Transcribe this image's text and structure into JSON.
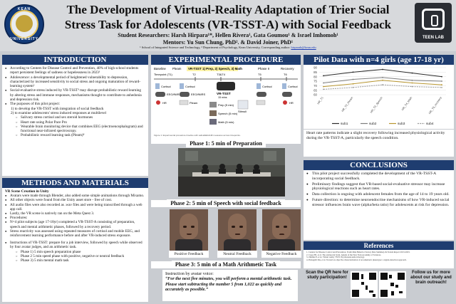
{
  "header": {
    "title_line1": "The Development of Virtual-Reality Adaptation of Trier Social",
    "title_line2": "Stress Task for Adolescents (VR-TSST-A) with Social Feedback",
    "researchers": "Student Researchers: Harsh Hirpara¹*, Hellen Rivera¹, Gata Goumou¹ & Israel Imhomoh¹",
    "mentors": "Mentors: Yu Sun Chung, PhD². & David Joiner, PhD¹",
    "affiliation": "¹ School of Integrated Science and Technology, ² Department of Psychology, Kean University, Corresponding author:",
    "email": "hirparah@kean.edu",
    "left_logo_top": "KEAN",
    "left_logo_bottom": "UNIVERSITY",
    "right_logo_label": "TEEN LAB"
  },
  "introduction": {
    "heading": "INTRODUCTION",
    "bullets": [
      "According to Centers for Disease Control and Prevention, 40% of high school students report persistent feelings of sadness or hopelessness in 2023¹",
      "Adolescence: a developmental period of heightened vulnerability to depression, characterized by increased sensitivity to social stress and ongoing maturation of reward-learning system²",
      "Social-evaluative stress induced by VR-TSST³ may disrupt probabilistic reward learning by altering stress and immune responses, mechanisms thought to contribute to anhedonia and depression risk.",
      "The purposes of this pilot project:"
    ],
    "numbered": [
      "1)  to develop the VR-TSST with integration of social feedback",
      "2)  to examine adolescents' stress induced responses at multilevel"
    ],
    "sub_bullets": [
      "Salivary stress cortisol and sex steroid hormones",
      "Heart rate using Polar Pace Pro",
      "Wearable brain monitoring device that combines EEG (electroencephalogram) and functional near-infrared spectroscopy.",
      "Probabilistic reward learning task (Pleam)⁴"
    ]
  },
  "methods": {
    "heading": "METHODS AND MATERIALS",
    "subheading": "VR Scene Creation in Unity",
    "bullets": [
      "Avatars were made through Blender, also added some simple animations through Mixamo.",
      "All other objects were found from the Unity asset store - free of cost.",
      "All audio files were also recorded as .wav files and were being transcribed through a web app call.",
      "Lastly, the VR scene is natively ran on the Meta Quest 3.",
      "Procedures:",
      "N=4 pilot subjects (age 17-18yr) completed a VR-TSST-A consisting of preparation, speech and mental arithmetic phases, followed by a recovery period.",
      "Stress reactivity was assessed using repeated measures of cortisol and mobile EEG, and reinforcement learning performance before and after VR-induced stress exposure."
    ],
    "bullet_last": "Instructions of VR-TSST: prepare for a job interview, followed by speech while observed by four avatar judges, and an arithmetic task.",
    "phases": [
      "Phase 1) 5 min speech preparation phase",
      "Phase 2 5 min speed phase with positive, negative or neutral feedback",
      "Phase 3) 5 min mental math task"
    ]
  },
  "experimental": {
    "heading": "EXPERIMENTAL PROCEDURE",
    "phases_row": [
      "Baseline",
      "Pleam",
      "VR-TSST 1) Prep, 2) Speech, 3) Math",
      "Phase II",
      "Recovery"
    ],
    "timepoints": [
      "Timepoint (T1)",
      "T2",
      "T3&T4",
      "T5",
      "T6"
    ],
    "labels": {
      "cortisol": "Cortisol",
      "eeg": "EEG/fNIRS",
      "hr": "HR",
      "vr_tsst": "VR-TSST",
      "vr_sub": "15 mins",
      "prep": "Prep (5 min)",
      "speech": "Speech (5 min)",
      "math": "Math (5 min)",
      "pleam": "Pleam",
      "stimuli": "Stimuli"
    },
    "footnote": "Figure 1: Experimental procedure timeline with saliva/EEG/HR measures across timepoints."
  },
  "phase1": {
    "caption": "Phase 1: 5 min of Preparation"
  },
  "phase2": {
    "caption": "Phase 2: 5 min of Speech with social feedback",
    "feedback": [
      "Positive Feedback",
      "Neutral Feedback",
      "Negative Feedback"
    ]
  },
  "phase3": {
    "caption": "Phase 3: 5 min of a Math Arithmetic Task",
    "instruction": "Instruction by avatar voice:",
    "quote": "“For the next five minutes, you will perform a mental arithmetic task. Please start subtracting the number 5 from 1,022 as quickly and accurately as possible.”"
  },
  "pilot": {
    "heading": "Pilot Data with n=4 girls (age 17-18 yr)",
    "text": "Heart rate patterns indicate a slight recovery following increased physiological activity during the VR-TSST-A, particularly the speech condition."
  },
  "chart_data": {
    "type": "line",
    "categories": [
      "HR_T1",
      "HR_T2_Pleam",
      "HR_T3_Speech",
      "HR_T4_Math",
      "HR_T5_recovery"
    ],
    "series": [
      {
        "name": "sub1",
        "values": [
          81,
          85,
          88,
          84,
          80
        ]
      },
      {
        "name": "sub2",
        "values": [
          73,
          77,
          79,
          76,
          75
        ]
      },
      {
        "name": "sub3",
        "values": [
          69,
          72,
          76,
          73,
          71
        ]
      },
      {
        "name": "sub4",
        "values": [
          66,
          68,
          71,
          69,
          68
        ]
      }
    ],
    "ylim": [
      60,
      90
    ],
    "yticks": [
      60,
      65,
      70,
      75,
      80,
      85,
      90
    ],
    "legend": "bottom",
    "colors": [
      "#2a2a2a",
      "#7d7d7d",
      "#b8962f",
      "#9a9a9a"
    ]
  },
  "conclusions": {
    "heading": "CONCLUSIONS",
    "bullets": [
      "This pilot project successfully completed the development of the VR-TSST-A incorporating social feedback.",
      "Preliminary findings suggest that VR-based social-evaluative stressor may increase physiological reactions such as heart rates.",
      "Data collection is ongoing with adolescent females from the age of 14 to 19 years old.",
      "Future direction: to determine neuroendocrine mechanisms of how VR-induced social stressor influences brain wave (alpha/beta ratio) for adolescents at risk for depression."
    ]
  },
  "references": {
    "heading": "References",
    "items": [
      "1. Centers for Disease Control and Prevention. Youth Risk Behavior Survey Data Summary & Trends Report 2013-2023.",
      "2. Casey BJ, et al. The adolescent brain. Annals of the New York Academy of Sciences.",
      "3. Zimmer P, et al. Virtual reality TSST. Psychoneuroendocrinology.",
      "4. Pizzagalli DA, et al. Toward an objective characterization of an anhedonic phenotype: a signal-detection approach."
    ]
  },
  "qr": {
    "caption_left": "Scan the QR here for study participation!",
    "caption_right": "Follow us for more about our study and brain outreach!"
  }
}
